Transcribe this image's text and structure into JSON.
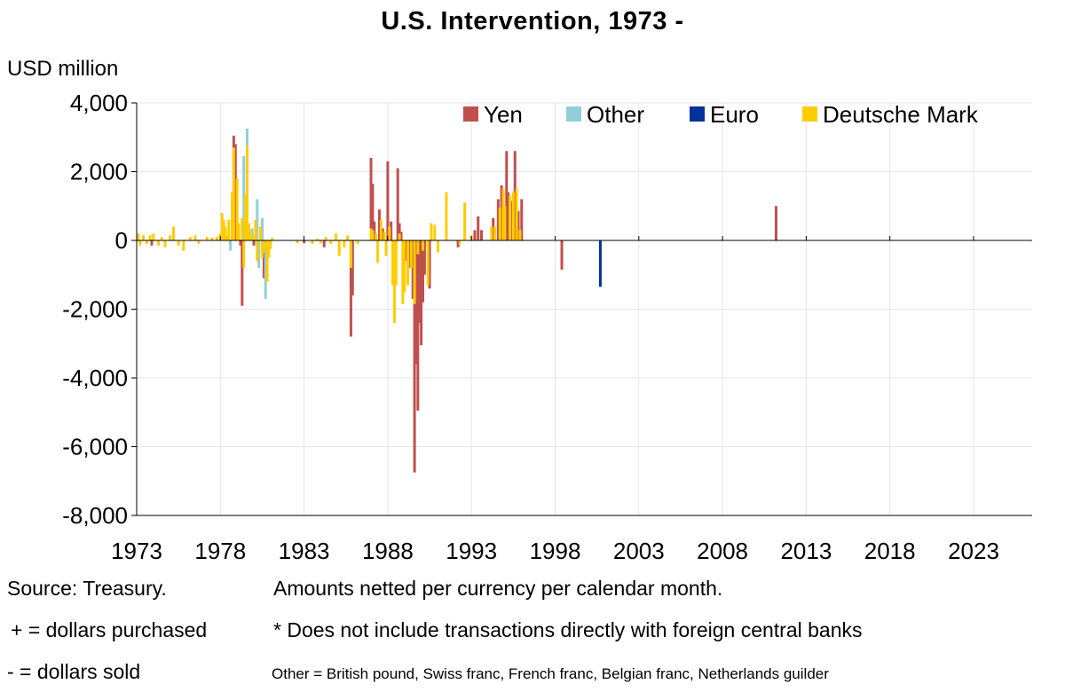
{
  "chart_data": {
    "type": "bar",
    "title": "U.S. Intervention, 1973 -",
    "ylabel": "USD million",
    "ylim": [
      -8000,
      4000
    ],
    "yticks": [
      4000,
      2000,
      0,
      -2000,
      -4000,
      -6000,
      -8000
    ],
    "ytick_labels": [
      "4,000",
      "2,000",
      "0",
      "-2,000",
      "-4,000",
      "-6,000",
      "-8,000"
    ],
    "xlim": [
      1973,
      2026.5
    ],
    "xticks": [
      1973,
      1978,
      1983,
      1988,
      1993,
      1998,
      2003,
      2008,
      2013,
      2018,
      2023
    ],
    "xtick_labels": [
      "1973",
      "1978",
      "1983",
      "1988",
      "1993",
      "1998",
      "2003",
      "2008",
      "2013",
      "2018",
      "2023"
    ],
    "grid": true,
    "legend_position": "top-right",
    "colors": {
      "Yen": "#c0504d",
      "Other": "#92cddc",
      "Euro": "#003399",
      "Deutsche Mark": "#ffcc00"
    },
    "series": [
      {
        "name": "Yen",
        "points": [
          [
            1973.9,
            -150
          ],
          [
            1978.8,
            3050
          ],
          [
            1978.9,
            2800
          ],
          [
            1979.2,
            -150
          ],
          [
            1979.3,
            -1900
          ],
          [
            1980.0,
            -150
          ],
          [
            1980.6,
            -1100
          ],
          [
            1983.0,
            -80
          ],
          [
            1984.2,
            -200
          ],
          [
            1985.8,
            -2800
          ],
          [
            1985.9,
            -1600
          ],
          [
            1987.0,
            2400
          ],
          [
            1987.1,
            1650
          ],
          [
            1987.2,
            550
          ],
          [
            1987.5,
            900
          ],
          [
            1987.7,
            350
          ],
          [
            1988.0,
            2300
          ],
          [
            1988.2,
            550
          ],
          [
            1988.6,
            2100
          ],
          [
            1988.7,
            500
          ],
          [
            1988.8,
            250
          ],
          [
            1989.1,
            -600
          ],
          [
            1989.3,
            -800
          ],
          [
            1989.5,
            -1700
          ],
          [
            1989.6,
            -6750
          ],
          [
            1989.7,
            -3600
          ],
          [
            1989.8,
            -4950
          ],
          [
            1989.9,
            -2400
          ],
          [
            1990.0,
            -3050
          ],
          [
            1990.1,
            -1800
          ],
          [
            1990.2,
            -1000
          ],
          [
            1990.5,
            -1400
          ],
          [
            1992.2,
            -200
          ],
          [
            1993.2,
            300
          ],
          [
            1993.4,
            700
          ],
          [
            1993.6,
            300
          ],
          [
            1994.3,
            650
          ],
          [
            1994.6,
            1200
          ],
          [
            1994.8,
            1600
          ],
          [
            1995.1,
            2600
          ],
          [
            1995.2,
            1400
          ],
          [
            1995.4,
            1150
          ],
          [
            1995.6,
            2600
          ],
          [
            1995.8,
            850
          ],
          [
            1996.0,
            1200
          ],
          [
            1998.4,
            -850
          ],
          [
            2011.2,
            1000
          ]
        ]
      },
      {
        "name": "Other",
        "points": [
          [
            1978.6,
            -300
          ],
          [
            1979.4,
            2450
          ],
          [
            1979.6,
            3250
          ],
          [
            1979.9,
            350
          ],
          [
            1980.2,
            1200
          ],
          [
            1980.3,
            -800
          ],
          [
            1980.5,
            650
          ],
          [
            1980.7,
            -1700
          ],
          [
            1980.8,
            -400
          ]
        ]
      },
      {
        "name": "Euro",
        "points": [
          [
            2000.7,
            -1350
          ]
        ]
      },
      {
        "name": "Deutsche Mark",
        "points": [
          [
            1973.1,
            200
          ],
          [
            1973.2,
            -150
          ],
          [
            1973.4,
            150
          ],
          [
            1973.6,
            -100
          ],
          [
            1973.8,
            150
          ],
          [
            1974.0,
            200
          ],
          [
            1974.3,
            -150
          ],
          [
            1974.5,
            100
          ],
          [
            1974.7,
            -200
          ],
          [
            1975.0,
            150
          ],
          [
            1975.2,
            400
          ],
          [
            1975.5,
            -150
          ],
          [
            1975.8,
            -300
          ],
          [
            1976.2,
            100
          ],
          [
            1976.5,
            150
          ],
          [
            1976.7,
            -100
          ],
          [
            1977.2,
            100
          ],
          [
            1977.5,
            80
          ],
          [
            1977.8,
            100
          ],
          [
            1978.0,
            200
          ],
          [
            1978.1,
            800
          ],
          [
            1978.2,
            600
          ],
          [
            1978.3,
            400
          ],
          [
            1978.4,
            150
          ],
          [
            1978.5,
            600
          ],
          [
            1978.7,
            1400
          ],
          [
            1978.8,
            2700
          ],
          [
            1979.0,
            1800
          ],
          [
            1979.1,
            500
          ],
          [
            1979.3,
            650
          ],
          [
            1979.4,
            -800
          ],
          [
            1979.5,
            1350
          ],
          [
            1979.6,
            2750
          ],
          [
            1979.7,
            500
          ],
          [
            1979.8,
            300
          ],
          [
            1980.0,
            150
          ],
          [
            1980.1,
            600
          ],
          [
            1980.2,
            -600
          ],
          [
            1980.4,
            400
          ],
          [
            1980.5,
            -500
          ],
          [
            1980.6,
            -350
          ],
          [
            1980.8,
            -1200
          ],
          [
            1980.9,
            -500
          ],
          [
            1981.0,
            -250
          ],
          [
            1981.1,
            80
          ],
          [
            1982.6,
            -80
          ],
          [
            1983.5,
            -100
          ],
          [
            1983.8,
            50
          ],
          [
            1984.0,
            -80
          ],
          [
            1984.3,
            100
          ],
          [
            1984.6,
            -100
          ],
          [
            1984.9,
            200
          ],
          [
            1985.1,
            -450
          ],
          [
            1985.4,
            -200
          ],
          [
            1985.6,
            150
          ],
          [
            1985.8,
            -800
          ],
          [
            1986.2,
            -100
          ],
          [
            1987.0,
            350
          ],
          [
            1987.1,
            300
          ],
          [
            1987.3,
            200
          ],
          [
            1987.4,
            -650
          ],
          [
            1987.6,
            600
          ],
          [
            1987.8,
            250
          ],
          [
            1987.9,
            -450
          ],
          [
            1988.1,
            400
          ],
          [
            1988.3,
            -1300
          ],
          [
            1988.4,
            -2400
          ],
          [
            1988.5,
            -1300
          ],
          [
            1988.7,
            200
          ],
          [
            1988.9,
            -1850
          ],
          [
            1989.0,
            -1500
          ],
          [
            1989.2,
            -1300
          ],
          [
            1989.4,
            -800
          ],
          [
            1989.6,
            -1850
          ],
          [
            1989.8,
            -400
          ],
          [
            1990.1,
            -300
          ],
          [
            1990.4,
            -1300
          ],
          [
            1990.6,
            500
          ],
          [
            1990.8,
            450
          ],
          [
            1991.0,
            -350
          ],
          [
            1991.5,
            1400
          ],
          [
            1992.3,
            -100
          ],
          [
            1992.6,
            1100
          ],
          [
            1993.0,
            150
          ],
          [
            1994.2,
            400
          ],
          [
            1994.4,
            400
          ],
          [
            1994.7,
            950
          ],
          [
            1994.9,
            1500
          ],
          [
            1995.0,
            1000
          ],
          [
            1995.3,
            1300
          ],
          [
            1995.5,
            1400
          ],
          [
            1995.7,
            1500
          ],
          [
            1995.9,
            300
          ]
        ]
      }
    ]
  },
  "notes": {
    "source": "Source: Treasury.",
    "netting": "Amounts netted per currency per calendar month.",
    "plus": "+  =  dollars purchased",
    "disclaimer": "*  Does not include transactions directly with foreign central banks",
    "minus": "-  =  dollars sold",
    "other_def": "Other  =  British pound, Swiss franc, French franc, Belgian franc, Netherlands guilder"
  }
}
